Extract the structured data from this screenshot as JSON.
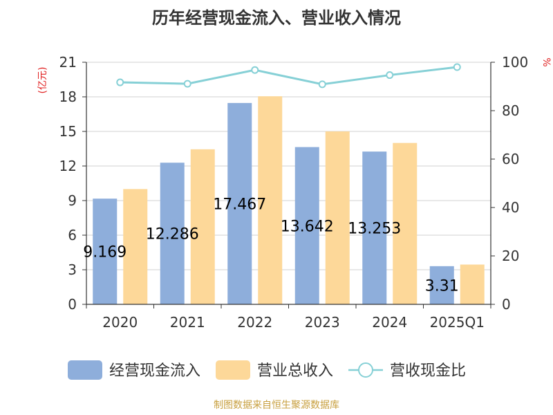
{
  "chart_data": {
    "type": "bar",
    "title": "历年经营现金流入、营业收入情况",
    "ylabel_left": "(亿元)",
    "ylabel_right": "%",
    "categories": [
      "2020",
      "2021",
      "2022",
      "2023",
      "2024",
      "2025Q1"
    ],
    "y_left_ticks": [
      "0",
      "3",
      "6",
      "9",
      "12",
      "15",
      "18",
      "21"
    ],
    "y_right_ticks": [
      "0",
      "20",
      "40",
      "60",
      "80",
      "100"
    ],
    "ylim_left": [
      0,
      21
    ],
    "ylim_right": [
      0,
      100
    ],
    "grid": true,
    "legend_position": "bottom",
    "series": [
      {
        "name": "经营现金流入",
        "type": "bar",
        "axis": "left",
        "color": "#8eaedb",
        "values": [
          9.169,
          12.286,
          17.467,
          13.642,
          13.253,
          3.31
        ],
        "labels": [
          "9.169",
          "12.286",
          "17.467",
          "13.642",
          "13.253",
          "3.31"
        ]
      },
      {
        "name": "营业总收入",
        "type": "bar",
        "axis": "left",
        "color": "#fdd899",
        "values": [
          10.0,
          13.45,
          18.05,
          15.0,
          14.0,
          3.45
        ]
      },
      {
        "name": "营收现金比",
        "type": "line",
        "axis": "right",
        "color": "#86d0d6",
        "values": [
          91.7,
          91.1,
          96.8,
          90.9,
          94.7,
          98.0
        ]
      }
    ]
  },
  "source": "制图数据来自恒生聚源数据库",
  "colors": {
    "axis": "#333333",
    "grid": "#d0d0d0",
    "title": "#333333",
    "left_label": "#e02020",
    "right_label": "#e02020",
    "source": "#c8a040"
  }
}
